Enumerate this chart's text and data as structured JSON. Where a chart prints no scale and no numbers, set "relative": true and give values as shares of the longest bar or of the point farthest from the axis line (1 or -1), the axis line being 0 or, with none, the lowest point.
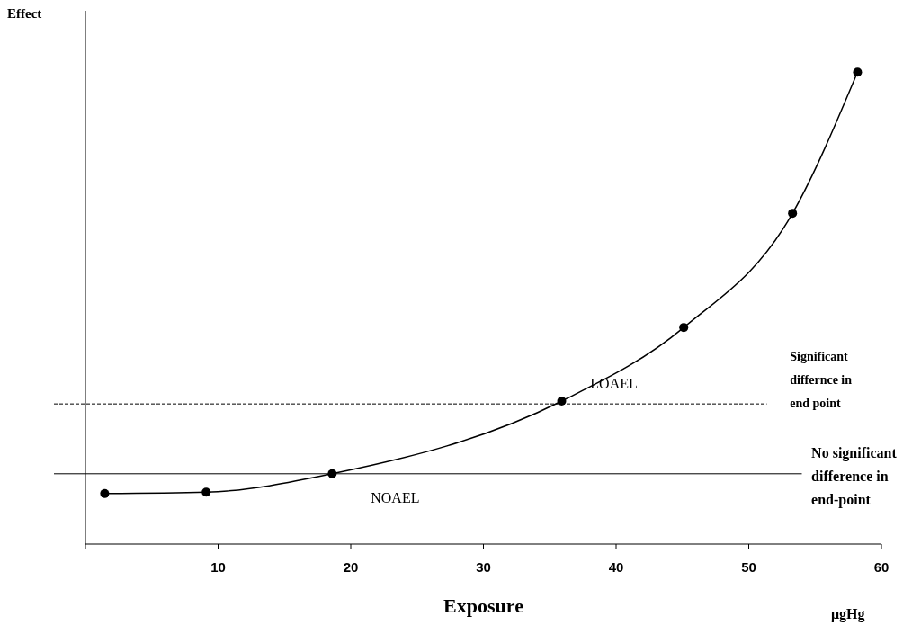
{
  "chart_data": {
    "type": "line",
    "relative": true,
    "xlabel": "Exposure",
    "x": [
      1.45,
      9.1,
      18.6,
      35.9,
      45.1,
      53.3,
      58.2
    ],
    "series": [
      {
        "color": "#000000",
        "values": [
          0.107,
          0.11,
          0.149,
          0.303,
          0.459,
          0.701,
          1
        ]
      }
    ],
    "marker": "circle",
    "line_style": "solid",
    "grid": false,
    "xlim": [
      0,
      60
    ],
    "xticks": [
      {
        "value": 0,
        "label": null
      },
      10,
      20,
      30,
      40,
      50,
      60
    ],
    "ref_lines": [
      {
        "axis": "y",
        "value": 0.297,
        "label": "Significant differnce in end point",
        "line_style": "dashed",
        "color": "#000000"
      },
      {
        "axis": "y",
        "value": 0.149,
        "label": "No significant difference in end-point",
        "line_style": "solid",
        "color": "#000000"
      }
    ],
    "annotations": [
      {
        "text": "NOAEL",
        "x": 18.6,
        "y": 0.149
      },
      {
        "text": "LOAEL",
        "x": 35.9,
        "y": 0.303
      },
      "Effect",
      "μgHg"
    ]
  }
}
